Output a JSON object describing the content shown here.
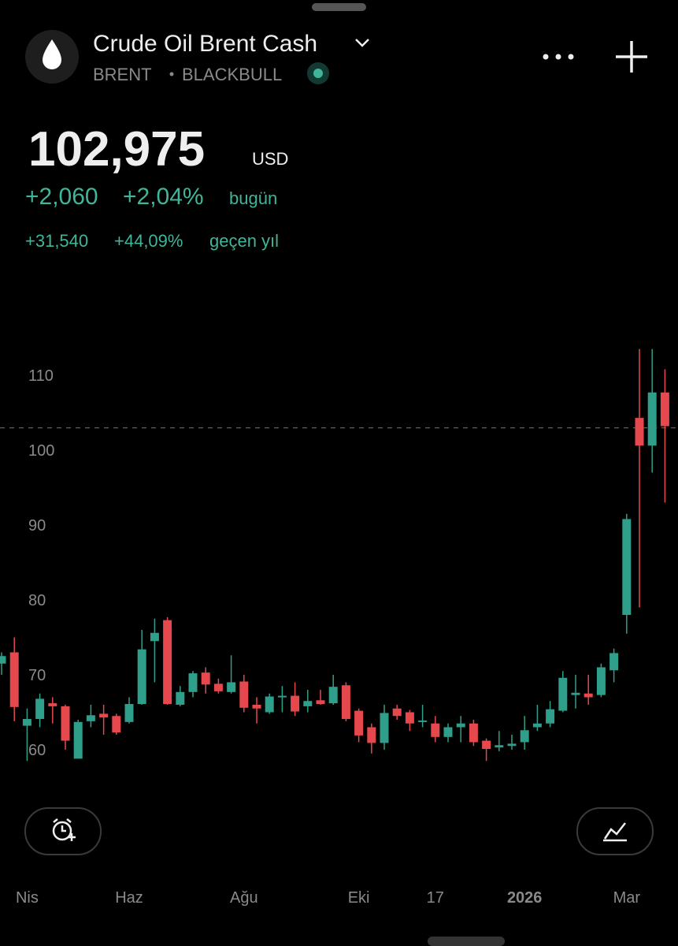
{
  "header": {
    "title": "Crude Oil Brent Cash",
    "symbol": "BRENT",
    "exchange": "BLACKBULL",
    "price": "102,975",
    "currency": "USD",
    "change_today": "+2,060",
    "change_today_pct": "+2,04%",
    "today_label": "bugün",
    "change_year": "+31,540",
    "change_year_pct": "+44,09%",
    "year_label": "geçen yıl"
  },
  "chart_data": {
    "type": "candlestick",
    "up_color": "#2f9e8a",
    "down_color": "#e5484d",
    "categories": [
      null,
      null,
      "Nis",
      null,
      null,
      null,
      null,
      null,
      null,
      null,
      "Haz",
      null,
      null,
      null,
      null,
      null,
      null,
      null,
      null,
      "Ağu",
      null,
      null,
      null,
      null,
      null,
      null,
      null,
      null,
      "Eki",
      null,
      null,
      null,
      null,
      null,
      "17",
      null,
      null,
      null,
      null,
      null,
      null,
      "2026",
      null,
      null,
      null,
      null,
      null,
      null,
      null,
      "Mar",
      null,
      null,
      null
    ],
    "open": [
      71.5,
      73,
      63.2,
      64.1,
      66.2,
      65.8,
      58.8,
      63.8,
      64.8,
      64.5,
      63.7,
      66.1,
      74.5,
      77.3,
      66,
      67.7,
      70.3,
      68.8,
      67.7,
      69.1,
      66,
      65,
      67,
      67.2,
      65.8,
      66.6,
      66.2,
      68.6,
      65.2,
      63,
      60.9,
      65.5,
      65,
      63.7,
      63.5,
      61.7,
      63,
      63.5,
      61.2,
      60.3,
      60.5,
      61,
      63,
      63.5,
      65.2,
      67.3,
      67.5,
      67.3,
      70.6,
      78,
      104.3,
      100.6,
      107.7
    ],
    "high": [
      73,
      75,
      65.5,
      67.5,
      67,
      66,
      64,
      66,
      66,
      64.8,
      67,
      76,
      77.5,
      77.7,
      68.5,
      70.5,
      71,
      69.5,
      72.6,
      70,
      67,
      67.5,
      68.5,
      69,
      68,
      68,
      70,
      69,
      65.5,
      63.5,
      66,
      66,
      65.3,
      66,
      64.5,
      63.5,
      64.5,
      64,
      61.5,
      62.5,
      62,
      64.5,
      66,
      66.5,
      70.5,
      70,
      70,
      71.5,
      73.5,
      91.5,
      113.5,
      113.5,
      110.8
    ],
    "low": [
      70,
      63.8,
      58.5,
      63,
      63.5,
      60,
      58.8,
      63,
      62,
      62,
      63.5,
      66,
      69,
      66,
      65.8,
      67,
      67.5,
      67.5,
      67.5,
      65,
      63.5,
      64.8,
      65,
      64.5,
      65,
      66,
      66,
      63.8,
      61,
      59.5,
      60,
      64,
      62.5,
      63,
      61,
      61,
      61,
      60.5,
      58.5,
      59.8,
      60,
      60,
      62.5,
      63,
      65,
      65.5,
      66,
      67,
      69,
      75.5,
      79,
      97,
      93
    ],
    "close": [
      72.5,
      65.7,
      64.1,
      66.8,
      65.8,
      61.2,
      63.7,
      64.6,
      64.3,
      62.3,
      66.1,
      73.4,
      75.6,
      66.1,
      67.7,
      70.2,
      68.7,
      67.8,
      69,
      65.6,
      65.5,
      67.1,
      67.2,
      65.1,
      66.5,
      66.1,
      68.4,
      64.1,
      61.9,
      60.9,
      64.9,
      64.5,
      63.5,
      63.9,
      61.7,
      63,
      63.5,
      61,
      60.1,
      60.6,
      60.8,
      62.6,
      63.5,
      65.4,
      69.6,
      67.6,
      67,
      71,
      72.9,
      90.8,
      100.6,
      107.7,
      103.2
    ],
    "last_price": 102.975,
    "ylim": [
      54.84,
      114.84
    ],
    "yticks": [
      60,
      70,
      80,
      90,
      100,
      110
    ]
  }
}
